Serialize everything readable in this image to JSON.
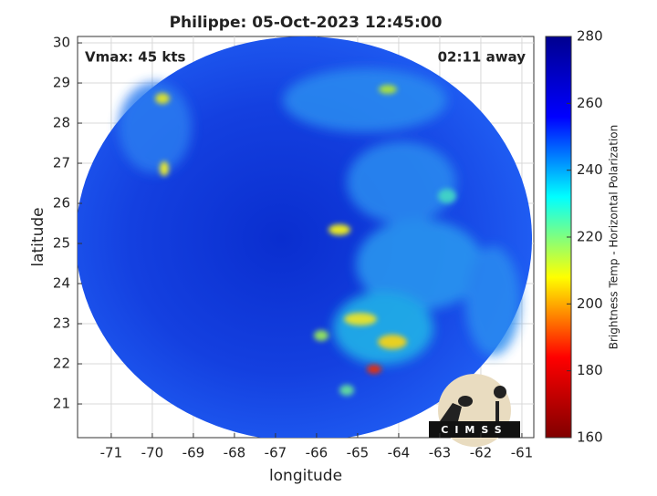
{
  "chart_data": {
    "type": "image-map",
    "title": "Philippe: 05-Oct-2023 12:45:00",
    "annotations": [
      "Vmax: 45 kts",
      "02:11 away"
    ],
    "x_label": "longitude",
    "y_label": "latitude",
    "xlim": [
      -71.82,
      -60.71
    ],
    "xticks": [
      -71,
      -70,
      -69,
      -68,
      -67,
      -66,
      -65,
      -64,
      -63,
      -62,
      -61
    ],
    "ylim": [
      20.16,
      30.16
    ],
    "yticks": [
      21,
      22,
      23,
      24,
      25,
      26,
      27,
      28,
      29,
      30
    ],
    "grid": true,
    "colorbar": {
      "label": "Brightness Temp - Horizontal Polarization",
      "lim": [
        160,
        280
      ],
      "ticks": [
        160,
        180,
        200,
        220,
        240,
        260,
        280
      ],
      "colormap": "jet_r"
    },
    "logo_text": "CIMSS"
  }
}
